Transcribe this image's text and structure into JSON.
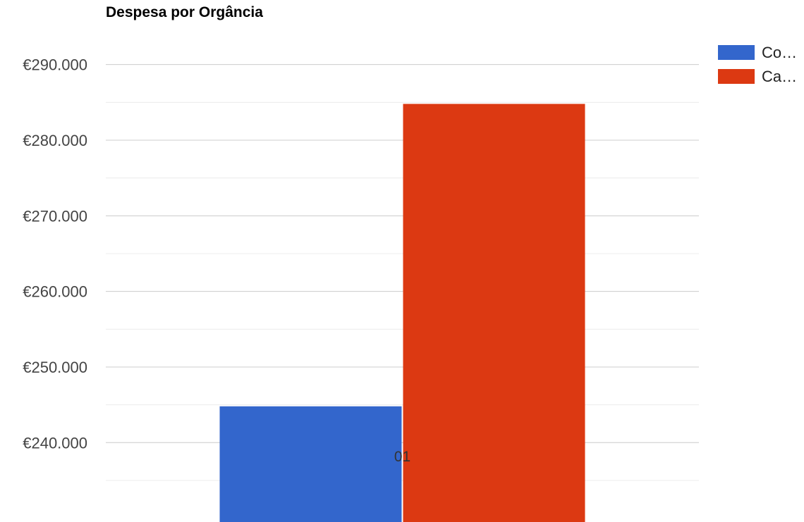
{
  "chart_data": {
    "type": "bar",
    "title": "Despesa por Orgância",
    "xlabel": "",
    "ylabel": "",
    "categories": [
      "01"
    ],
    "series": [
      {
        "name": "Co…",
        "color": "#3366cc",
        "values": [
          244800
        ]
      },
      {
        "name": "Ca…",
        "color": "#dc3912",
        "values": [
          284800
        ]
      }
    ],
    "ylim": [
      229500,
      295000
    ],
    "yticks": [
      240000,
      250000,
      260000,
      270000,
      280000,
      290000
    ],
    "ytick_labels": [
      "€240.000",
      "€250.000",
      "€260.000",
      "€270.000",
      "€280.000",
      "€290.000"
    ],
    "minor_gridlines": true,
    "grid": true,
    "legend_position": "right"
  }
}
